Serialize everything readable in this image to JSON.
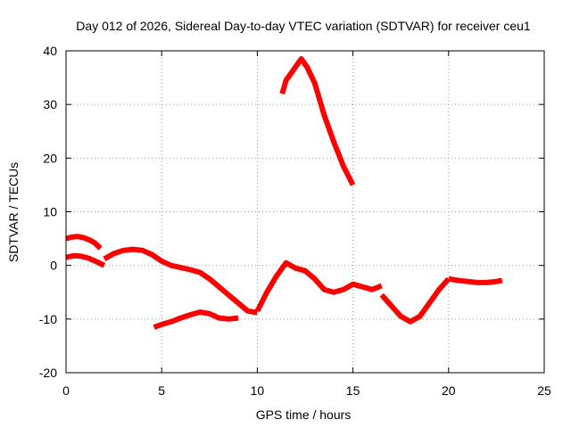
{
  "chart_data": {
    "type": "line",
    "title": "Day 012 of 2026, Sidereal Day-to-day VTEC variation (SDTVAR) for receiver ceu1",
    "xlabel": "GPS time / hours",
    "ylabel": "SDTVAR / TECUs",
    "xlim": [
      0,
      25
    ],
    "ylim": [
      -20,
      40
    ],
    "x_ticks": [
      0,
      5,
      10,
      15,
      20,
      25
    ],
    "y_ticks": [
      -20,
      -10,
      0,
      10,
      20,
      30,
      40
    ],
    "x_tick_labels": [
      "0",
      "5",
      "10",
      "15",
      "20",
      "25"
    ],
    "y_tick_labels": [
      "-20",
      "-10",
      "0",
      "10",
      "20",
      "30",
      "40"
    ],
    "grid": true,
    "legend": "none",
    "series_color": "#ff0000",
    "series": [
      {
        "name": "arc-top",
        "x": [
          0.0,
          0.3,
          0.6,
          0.9,
          1.2,
          1.5,
          1.8
        ],
        "y": [
          5.0,
          5.3,
          5.4,
          5.2,
          4.8,
          4.2,
          3.2
        ]
      },
      {
        "name": "arc-low-start",
        "x": [
          0.0,
          0.4,
          0.8,
          1.2,
          1.6,
          2.0
        ],
        "y": [
          1.5,
          1.8,
          1.7,
          1.3,
          0.7,
          0.0
        ]
      },
      {
        "name": "arc-main",
        "x": [
          2.0,
          2.5,
          3.0,
          3.5,
          4.0,
          4.5,
          5.0,
          5.5,
          6.0,
          6.5,
          7.0,
          7.5,
          8.0,
          8.5,
          9.0,
          9.5,
          10.0
        ],
        "y": [
          1.2,
          2.2,
          2.8,
          3.0,
          2.8,
          2.0,
          0.8,
          0.0,
          -0.4,
          -0.8,
          -1.3,
          -2.5,
          -4.0,
          -5.5,
          -7.0,
          -8.5,
          -8.8
        ]
      },
      {
        "name": "arc-lower",
        "x": [
          4.6,
          5.0,
          5.5,
          6.0,
          6.5,
          7.0,
          7.5,
          8.0,
          8.5,
          9.0
        ],
        "y": [
          -11.5,
          -11.0,
          -10.5,
          -9.8,
          -9.2,
          -8.7,
          -9.0,
          -9.8,
          -10.0,
          -9.8
        ]
      },
      {
        "name": "arc-peak",
        "x": [
          11.3,
          11.5,
          11.8,
          12.1,
          12.3,
          12.6,
          13.0,
          13.5,
          14.0,
          14.5,
          15.0
        ],
        "y": [
          32.0,
          34.5,
          36.0,
          37.5,
          38.5,
          37.0,
          34.0,
          28.0,
          23.0,
          18.5,
          15.0
        ]
      },
      {
        "name": "arc-mid",
        "x": [
          10.0,
          10.5,
          11.0,
          11.5,
          12.0,
          12.5,
          13.0,
          13.5,
          14.0,
          14.5,
          15.0,
          15.5,
          16.0,
          16.5
        ],
        "y": [
          -8.5,
          -5.0,
          -2.0,
          0.5,
          -0.5,
          -1.0,
          -2.5,
          -4.5,
          -5.0,
          -4.5,
          -3.5,
          -4.0,
          -4.5,
          -3.8
        ]
      },
      {
        "name": "arc-dip",
        "x": [
          16.5,
          17.0,
          17.5,
          18.0,
          18.5,
          19.0,
          19.5,
          20.0
        ],
        "y": [
          -5.5,
          -7.5,
          -9.5,
          -10.5,
          -9.5,
          -7.0,
          -4.5,
          -2.5
        ]
      },
      {
        "name": "arc-tail",
        "x": [
          20.0,
          20.5,
          21.0,
          21.5,
          22.0,
          22.5,
          22.8
        ],
        "y": [
          -2.5,
          -2.8,
          -3.0,
          -3.2,
          -3.2,
          -3.0,
          -2.8
        ]
      }
    ]
  }
}
